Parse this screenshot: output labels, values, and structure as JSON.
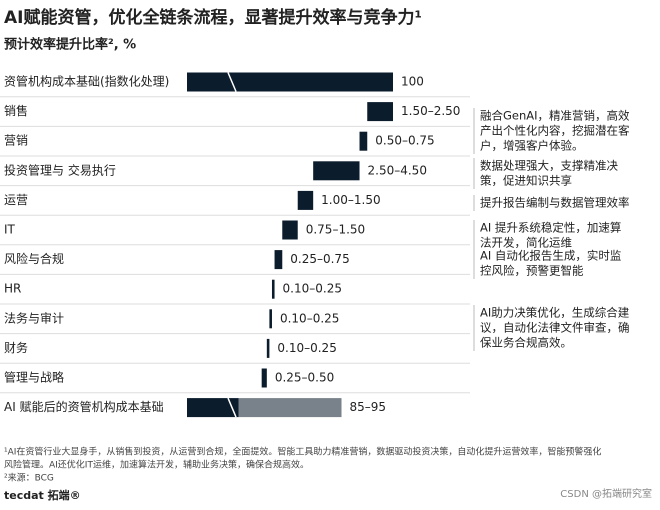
{
  "chart_data": {
    "type": "waterfall",
    "title": "AI赋能资管，优化全链条流程，显著提升效率与竞争力¹",
    "subtitle": "预计效率提升比率², %",
    "categories": [
      "资管机构成本基础(指数化处理)",
      "销售",
      "营销",
      "投资管理与 交易执行",
      "运营",
      "IT",
      "风险与合规",
      "HR",
      "法务与审计",
      "财务",
      "管理与战略",
      "AI 赋能后的资管机构成本基础"
    ],
    "low": [
      null,
      1.5,
      0.5,
      2.5,
      1,
      0.75,
      0.25,
      0.1,
      0.1,
      0.1,
      0.25,
      85
    ],
    "high": [
      100,
      2.5,
      0.75,
      4.5,
      1.5,
      1.5,
      0.75,
      0.25,
      0.25,
      0.25,
      0.5,
      95
    ],
    "value_labels": [
      "100",
      "1.50–2.50",
      "0.50–0.75",
      "2.50–4.50",
      "1.00–1.50",
      "0.75–1.50",
      "0.25–0.75",
      "0.10–0.25",
      "0.10–0.25",
      "0.10–0.25",
      "0.25–0.50",
      "85–95"
    ],
    "xlim": [
      80,
      100
    ],
    "color": "#0b1c2c",
    "annotations": [
      [
        "融合GenAI，精准营销，高效",
        "产出个性化内容，挖掘潜在客",
        "户，增强客户体验。"
      ],
      [
        "数据处理强大，支撑精准决",
        "策，促进知识共享"
      ],
      [
        "提升报告编制与数据管理效率"
      ],
      [
        "AI 提升系统稳定性，加速算",
        "法开发，简化运维"
      ],
      [
        "AI 自动化报告生成，实时监",
        "控风险，预警更智能"
      ],
      [
        "AI助力决策优化，生成综合建",
        "议，自动化法律文件审查，确",
        "保业务合规高效。"
      ]
    ],
    "footnote": [
      "¹AI在资管行业大显身手，从销售到投资，从运营到合规，全面提效。智能工具助力精准营销，数据驱动投资决策，自动化提升运营效率，智能预警强化",
      "风险管理。AI还优化IT运维，加速算法开发，辅助业务决策，确保合规高效。"
    ],
    "source": "²来源：BCG",
    "logo": "tecdat 拓端®",
    "watermark": "CSDN @拓端研究室"
  }
}
